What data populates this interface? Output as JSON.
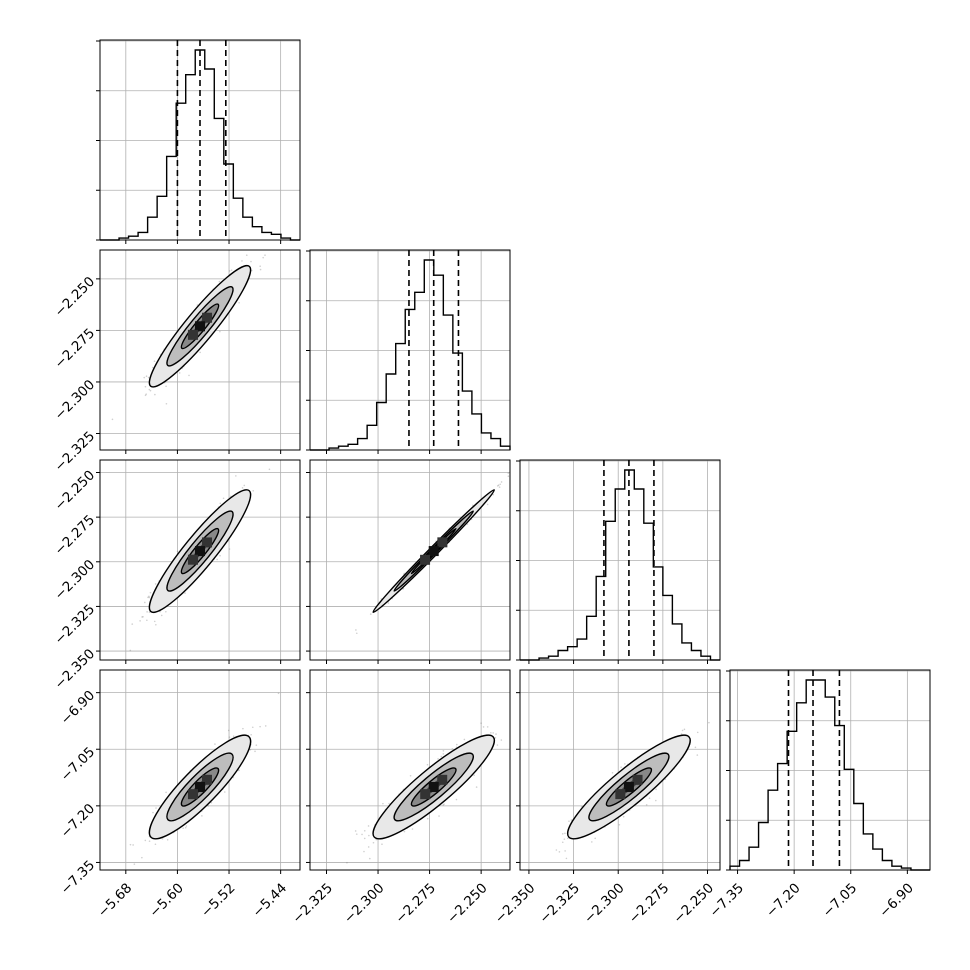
{
  "chart_data": {
    "type": "corner",
    "title": "",
    "parameters": [
      {
        "index": 0,
        "xticks": [
          -5.68,
          -5.6,
          -5.52,
          -5.44
        ],
        "xtick_labels": [
          "−5.68",
          "−5.60",
          "−5.52",
          "−5.44"
        ],
        "xlim": [
          -5.72,
          -5.41
        ],
        "quantiles": [
          -5.6,
          -5.565,
          -5.525
        ],
        "hist": [
          0,
          0,
          1,
          2,
          4,
          12,
          23,
          44,
          72,
          87,
          100,
          90,
          64,
          40,
          22,
          12,
          7,
          4,
          3,
          1,
          0
        ]
      },
      {
        "index": 1,
        "xticks": [
          -2.325,
          -2.3,
          -2.275,
          -2.25
        ],
        "xtick_labels": [
          "−2.325",
          "−2.300",
          "−2.275",
          "−2.250"
        ],
        "yticks": [
          -2.325,
          -2.3,
          -2.275,
          -2.25
        ],
        "ytick_labels": [
          "−2.325",
          "−2.300",
          "−2.275",
          "−2.250"
        ],
        "xlim": [
          -2.333,
          -2.236
        ],
        "quantiles": [
          -2.285,
          -2.273,
          -2.261
        ],
        "hist": [
          0,
          0,
          1,
          2,
          3,
          6,
          13,
          25,
          40,
          56,
          74,
          83,
          100,
          92,
          71,
          51,
          31,
          19,
          9,
          6,
          2
        ]
      },
      {
        "index": 2,
        "xticks": [
          -2.35,
          -2.325,
          -2.3,
          -2.275,
          -2.25
        ],
        "xtick_labels": [
          "−2.350",
          "−2.325",
          "−2.300",
          "−2.275",
          "−2.250"
        ],
        "yticks": [
          -2.35,
          -2.325,
          -2.3,
          -2.275,
          -2.25
        ],
        "ytick_labels": [
          "−2.350",
          "−2.325",
          "−2.300",
          "−2.275",
          "−2.250"
        ],
        "xlim": [
          -2.355,
          -2.243
        ],
        "quantiles": [
          -2.308,
          -2.294,
          -2.28
        ],
        "hist": [
          0,
          0,
          1,
          2,
          5,
          7,
          11,
          23,
          44,
          73,
          90,
          100,
          90,
          72,
          49,
          34,
          19,
          9,
          5,
          2,
          0
        ]
      },
      {
        "index": 3,
        "xticks": [
          -7.35,
          -7.2,
          -7.05,
          -6.9
        ],
        "xtick_labels": [
          "−7.35",
          "−7.20",
          "−7.05",
          "−6.90"
        ],
        "yticks": [
          -7.35,
          -7.2,
          -7.05,
          -6.9
        ],
        "ytick_labels": [
          "−7.35",
          "−7.20",
          "−7.05",
          "−6.90"
        ],
        "xlim": [
          -7.37,
          -6.84
        ],
        "quantiles": [
          -7.215,
          -7.15,
          -7.08
        ],
        "hist": [
          2,
          5,
          12,
          25,
          42,
          56,
          73,
          88,
          100,
          100,
          91,
          76,
          53,
          35,
          19,
          11,
          5,
          2,
          1,
          0,
          0
        ]
      }
    ],
    "joint_2d": [
      {
        "row": 1,
        "col": 0,
        "center": [
          -5.565,
          -2.273
        ],
        "sd": [
          0.032,
          0.012
        ],
        "corr": 0.93
      },
      {
        "row": 2,
        "col": 0,
        "center": [
          -5.565,
          -2.294
        ],
        "sd": [
          0.032,
          0.014
        ],
        "corr": 0.92
      },
      {
        "row": 2,
        "col": 1,
        "center": [
          -2.273,
          -2.294
        ],
        "sd": [
          0.012,
          0.014
        ],
        "corr": 0.995
      },
      {
        "row": 3,
        "col": 0,
        "center": [
          -5.565,
          -7.15
        ],
        "sd": [
          0.032,
          0.056
        ],
        "corr": 0.88
      },
      {
        "row": 3,
        "col": 1,
        "center": [
          -2.273,
          -7.15
        ],
        "sd": [
          0.012,
          0.056
        ],
        "corr": 0.9
      },
      {
        "row": 3,
        "col": 2,
        "center": [
          -2.294,
          -7.15
        ],
        "sd": [
          0.014,
          0.056
        ],
        "corr": 0.9
      }
    ],
    "diagonal_hist_yticks": 5,
    "grid": true,
    "quantile_style": "dashed",
    "legend": "none"
  }
}
